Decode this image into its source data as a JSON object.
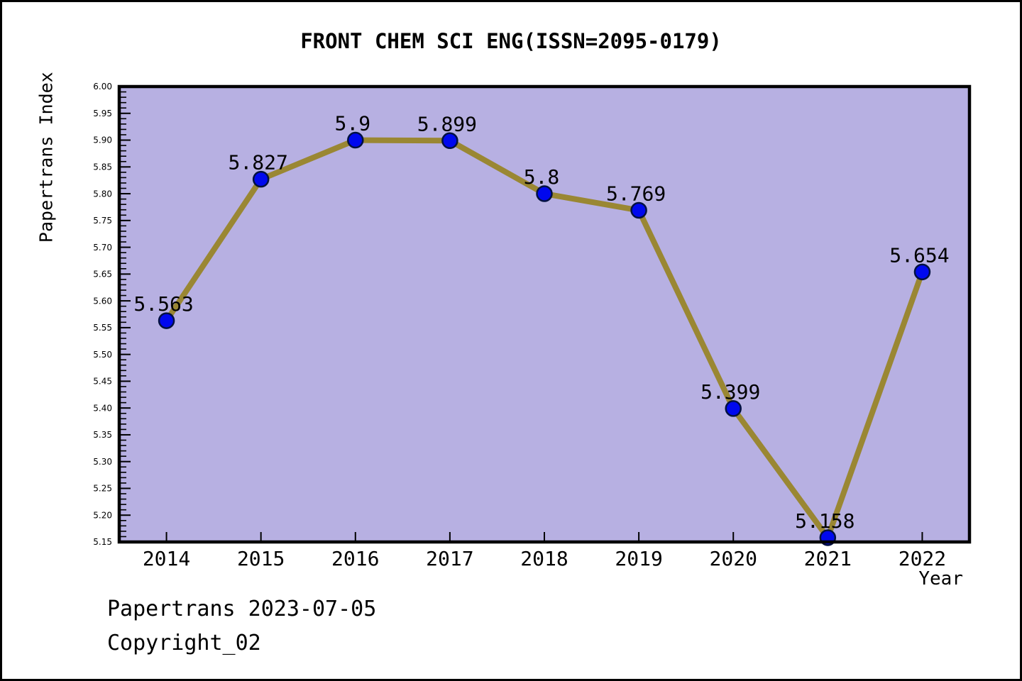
{
  "header": {
    "title": "FRONT CHEM SCI ENG(ISSN=2095-0179)"
  },
  "footer": {
    "date_line": "Papertrans 2023-07-05",
    "copyright_line": "Copyright_02"
  },
  "chart_data": {
    "type": "line",
    "title": "FRONT CHEM SCI ENG(ISSN=2095-0179)",
    "xlabel": "Year",
    "ylabel": "Papertrans Index",
    "categories": [
      "2014",
      "2015",
      "2016",
      "2017",
      "2018",
      "2019",
      "2020",
      "2021",
      "2022"
    ],
    "series": [
      {
        "name": "Papertrans Index",
        "values": [
          5.563,
          5.827,
          5.9,
          5.899,
          5.8,
          5.769,
          5.399,
          5.158,
          5.654
        ],
        "point_labels": [
          "5.563",
          "5.827",
          "5.9",
          "5.899",
          "5.8",
          "5.769",
          "5.399",
          "5.158",
          "5.654"
        ]
      }
    ],
    "ylim": [
      5.15,
      6.0
    ],
    "ytick_step": 0.05,
    "ytick_minor_step": 0.01,
    "grid": "off",
    "legend": "none",
    "colors": {
      "plot_background": "#b7b0e2",
      "line": "#9a8733",
      "marker_fill": "#0008ee",
      "marker_stroke": "#001040",
      "axis": "#000000",
      "text": "#000000",
      "page_background": "#ffffff"
    }
  }
}
